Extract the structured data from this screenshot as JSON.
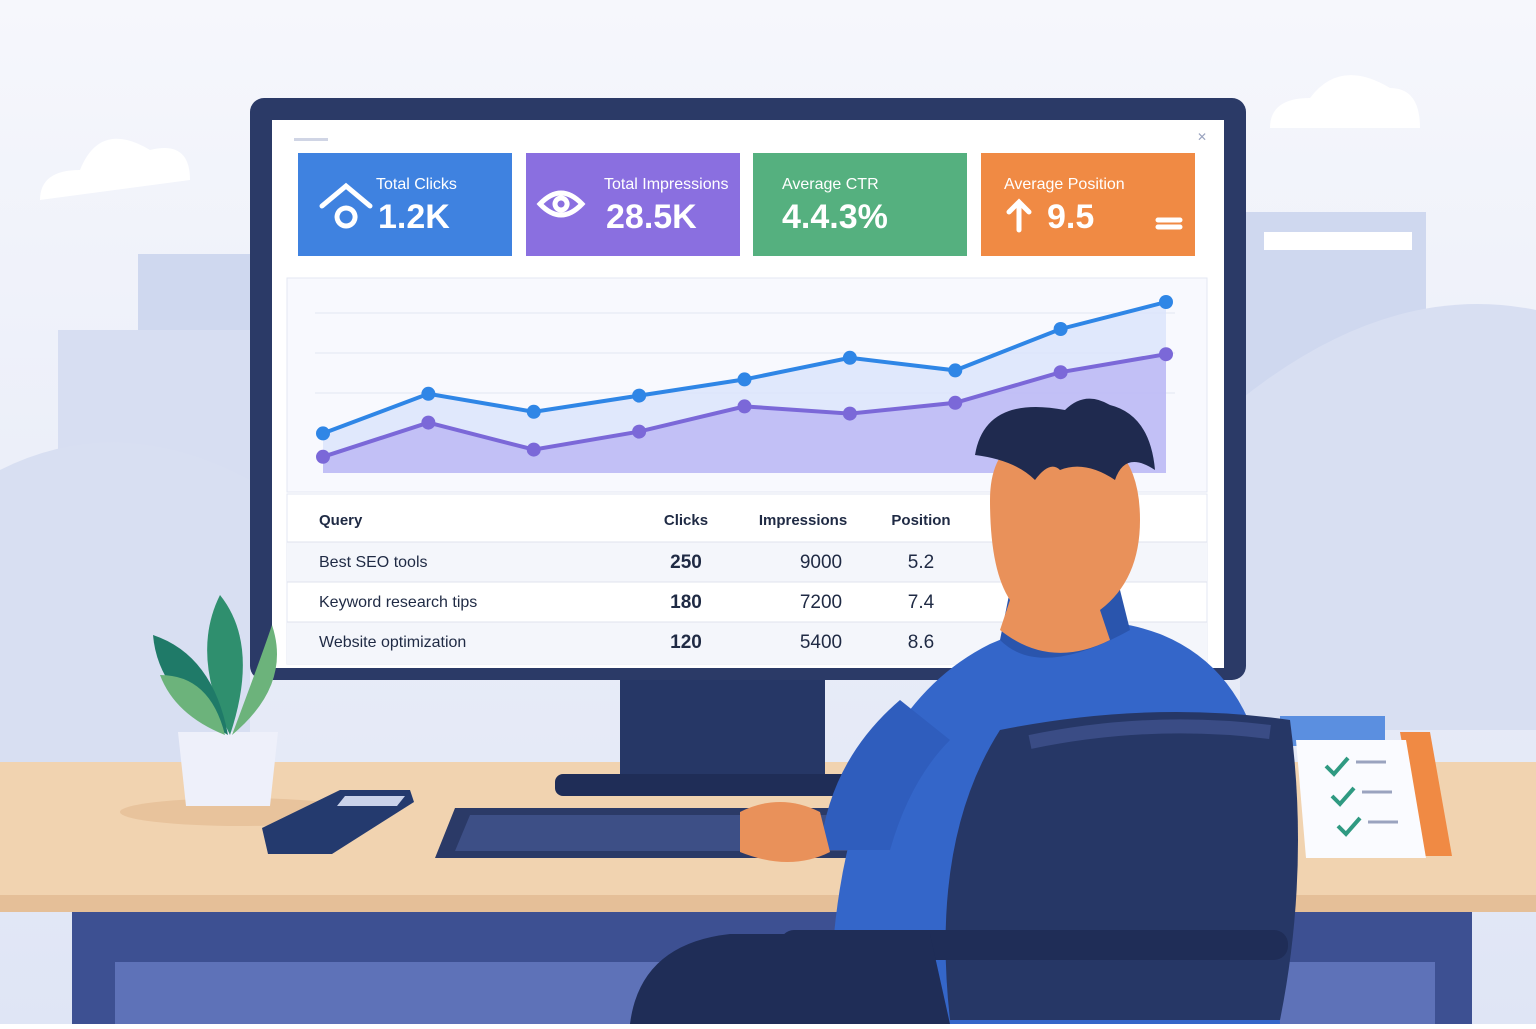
{
  "cards": [
    {
      "label": "Total Clicks",
      "value": "1.2K",
      "color": "#3f82e0"
    },
    {
      "label": "Total Impressions",
      "value": "28.5K",
      "color": "#8a6fe0"
    },
    {
      "label": "Average CTR",
      "value": "4.4.3%",
      "color": "#55b07f"
    },
    {
      "label": "Average Position",
      "value": "9.5",
      "color": "#f08a44"
    }
  ],
  "chart": {
    "type": "line",
    "ylim": [
      0,
      100
    ],
    "series": [
      {
        "color": "#2f86e6",
        "values": [
          22,
          44,
          34,
          43,
          52,
          64,
          57,
          80,
          95
        ]
      },
      {
        "color": "#7b68d8",
        "values": [
          9,
          28,
          13,
          23,
          37,
          33,
          39,
          56,
          66
        ]
      }
    ]
  },
  "table": {
    "header": [
      "Query",
      "Clicks",
      "Impressions",
      "Position"
    ],
    "rows": [
      [
        "Best SEO tools",
        "250",
        "9000",
        "5.2"
      ],
      [
        "Keyword research tips",
        "180",
        "7200",
        "7.4"
      ],
      [
        "Website optimization",
        "120",
        "5400",
        "8.6"
      ]
    ]
  }
}
